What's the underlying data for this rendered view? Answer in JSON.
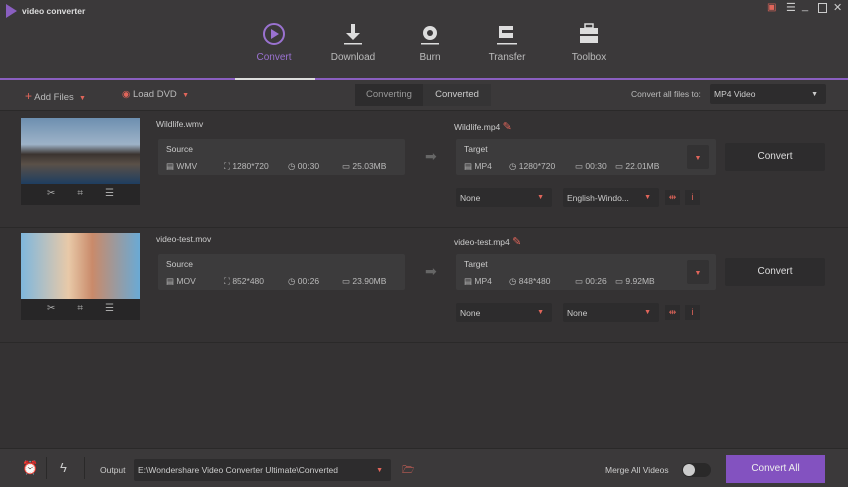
{
  "app": {
    "title": "video converter"
  },
  "nav": {
    "tabs": [
      {
        "label": "Convert",
        "icon": "convert-icon",
        "active": true
      },
      {
        "label": "Download",
        "icon": "download-icon"
      },
      {
        "label": "Burn",
        "icon": "burn-icon"
      },
      {
        "label": "Transfer",
        "icon": "transfer-icon"
      },
      {
        "label": "Toolbox",
        "icon": "toolbox-icon"
      }
    ]
  },
  "toolbar": {
    "add_files": "Add Files",
    "load_dvd": "Load DVD",
    "seg_converting": "Converting",
    "seg_converted": "Converted",
    "convert_all_label": "Convert all files to:",
    "convert_all_value": "MP4 Video"
  },
  "items": [
    {
      "source_name": "Wildlife.wmv",
      "source_label": "Source",
      "src_format": "WMV",
      "src_res": "1280*720",
      "src_dur": "00:30",
      "src_size": "25.03MB",
      "target_name": "Wildlife.mp4",
      "target_label": "Target",
      "tgt_format": "MP4",
      "tgt_res": "1280*720",
      "tgt_dur": "00:30",
      "tgt_size": "22.01MB",
      "subtitle": "None",
      "audio": "English-Windo...",
      "convert": "Convert"
    },
    {
      "source_name": "video-test.mov",
      "source_label": "Source",
      "src_format": "MOV",
      "src_res": "852*480",
      "src_dur": "00:26",
      "src_size": "23.90MB",
      "target_name": "video-test.mp4",
      "target_label": "Target",
      "tgt_format": "MP4",
      "tgt_res": "848*480",
      "tgt_dur": "00:26",
      "tgt_size": "9.92MB",
      "subtitle": "None",
      "audio": "None",
      "convert": "Convert"
    }
  ],
  "footer": {
    "output_label": "Output",
    "output_path": "E:\\Wondershare Video Converter Ultimate\\Converted",
    "merge_label": "Merge All Videos",
    "merge_on": false,
    "convert_all": "Convert All"
  },
  "colors": {
    "accent": "#8a5fc0",
    "warn": "#e0655a"
  }
}
